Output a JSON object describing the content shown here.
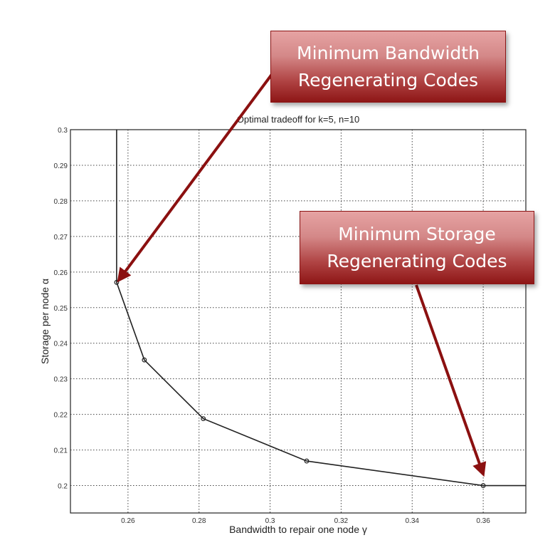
{
  "chart_data": {
    "type": "line",
    "title": "Optimal tradeoff for k=5, n=10",
    "xlabel": "Bandwidth to repair one node γ",
    "ylabel": "Storage per node α",
    "xlim": [
      0.2438,
      0.372
    ],
    "ylim": [
      0.1923,
      0.3
    ],
    "xticks": [
      "0.26",
      "0.28",
      "0.3",
      "0.32",
      "0.34",
      "0.36"
    ],
    "yticks": [
      "0.2",
      "0.21",
      "0.22",
      "0.23",
      "0.24",
      "0.25",
      "0.26",
      "0.27",
      "0.28",
      "0.29",
      "0.3"
    ],
    "grid": true,
    "series": [
      {
        "x": [
          0.2568,
          0.2568,
          0.2646,
          0.2812,
          0.3103,
          0.36,
          0.372
        ],
        "y": [
          0.3,
          0.2571,
          0.2353,
          0.2188,
          0.2069,
          0.2,
          0.2
        ],
        "markers": [
          false,
          true,
          true,
          true,
          true,
          true,
          false
        ],
        "color": "#222222"
      }
    ],
    "annotations": [
      {
        "lines": [
          "Minimum Bandwidth",
          "Regenerating Codes"
        ],
        "target": [
          0.2568,
          0.2571
        ]
      },
      {
        "lines": [
          "Minimum Storage",
          "Regenerating Codes"
        ],
        "target": [
          0.36,
          0.2
        ]
      }
    ],
    "arrow_color": "#8b1010"
  }
}
